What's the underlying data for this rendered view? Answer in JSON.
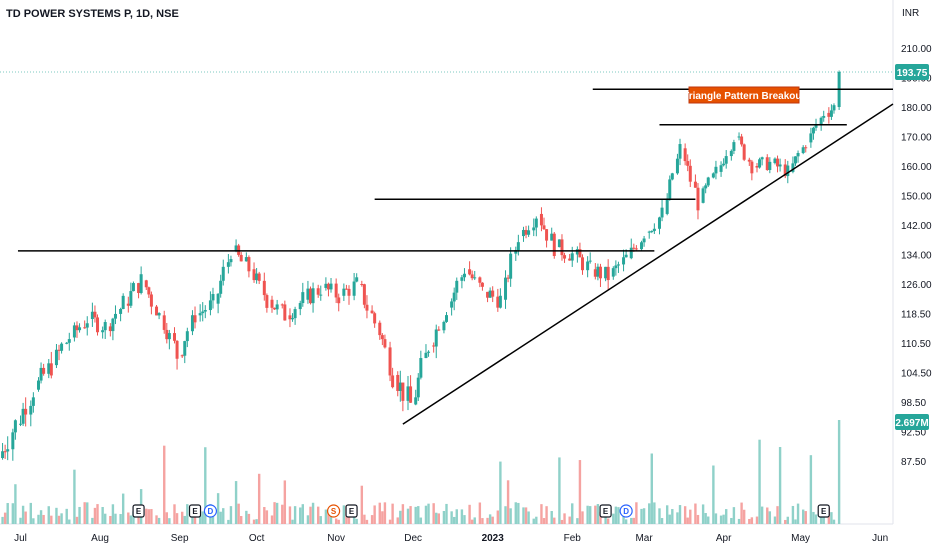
{
  "header": {
    "title": "TD POWER SYSTEMS P, 1D, NSE",
    "currency": "INR"
  },
  "colors": {
    "up": "#26a69a",
    "down": "#ef5350",
    "upVol": "#8fd1c9",
    "downVol": "#f5a3a1",
    "priceTag": "#26a69a",
    "volTag": "#26a69a",
    "annotation": "#e65100",
    "line": "#000000"
  },
  "chart_data": {
    "type": "candlestick",
    "title": "TD POWER SYSTEMS P, 1D, NSE",
    "y_axis": {
      "unit": "INR",
      "range": [
        84,
        218
      ],
      "ticks": [
        "210.00",
        "190.00",
        "180.00",
        "170.00",
        "160.00",
        "150.00",
        "142.00",
        "134.00",
        "126.00",
        "118.50",
        "110.50",
        "104.50",
        "98.50",
        "92.50",
        "87.50"
      ]
    },
    "x_axis": {
      "range": [
        "2022-06-23",
        "2023-06-06"
      ],
      "ticks": [
        {
          "label": "Jul",
          "date": "2022-07-01"
        },
        {
          "label": "Aug",
          "date": "2022-08-01"
        },
        {
          "label": "Sep",
          "date": "2022-09-01"
        },
        {
          "label": "Oct",
          "date": "2022-10-01"
        },
        {
          "label": "Nov",
          "date": "2022-11-01"
        },
        {
          "label": "Dec",
          "date": "2022-12-01"
        },
        {
          "label": "2023",
          "date": "2023-01-01"
        },
        {
          "label": "Feb",
          "date": "2023-02-01"
        },
        {
          "label": "Mar",
          "date": "2023-03-01"
        },
        {
          "label": "Apr",
          "date": "2023-04-01"
        },
        {
          "label": "May",
          "date": "2023-05-01"
        },
        {
          "label": "Jun",
          "date": "2023-06-01"
        }
      ]
    },
    "series_price": [
      [
        "2022-06-24",
        88,
        94
      ],
      [
        "2022-07-01",
        94,
        101
      ],
      [
        "2022-07-08",
        101,
        106
      ],
      [
        "2022-07-15",
        106,
        112
      ],
      [
        "2022-07-22",
        112,
        117
      ],
      [
        "2022-07-29",
        117,
        115
      ],
      [
        "2022-08-05",
        115,
        121
      ],
      [
        "2022-08-12",
        121,
        127
      ],
      [
        "2022-08-19",
        127,
        118
      ],
      [
        "2022-08-26",
        118,
        108
      ],
      [
        "2022-09-02",
        108,
        118
      ],
      [
        "2022-09-09",
        118,
        121
      ],
      [
        "2022-09-16",
        121,
        135
      ],
      [
        "2022-09-23",
        135,
        130
      ],
      [
        "2022-09-30",
        130,
        122
      ],
      [
        "2022-10-07",
        122,
        118
      ],
      [
        "2022-10-14",
        118,
        122
      ],
      [
        "2022-10-21",
        122,
        125
      ],
      [
        "2022-10-28",
        125,
        123
      ],
      [
        "2022-11-04",
        123,
        126
      ],
      [
        "2022-11-11",
        126,
        116
      ],
      [
        "2022-11-18",
        116,
        104
      ],
      [
        "2022-11-25",
        104,
        98
      ],
      [
        "2022-12-02",
        98,
        110
      ],
      [
        "2022-12-09",
        110,
        120
      ],
      [
        "2022-12-16",
        120,
        130
      ],
      [
        "2022-12-23",
        130,
        124
      ],
      [
        "2022-12-30",
        124,
        122
      ],
      [
        "2023-01-06",
        122,
        139
      ],
      [
        "2023-01-13",
        139,
        145
      ],
      [
        "2023-01-20",
        145,
        136
      ],
      [
        "2023-01-27",
        136,
        134
      ],
      [
        "2023-02-03",
        134,
        130
      ],
      [
        "2023-02-10",
        130,
        128
      ],
      [
        "2023-02-17",
        128,
        133
      ],
      [
        "2023-02-24",
        133,
        140
      ],
      [
        "2023-03-03",
        140,
        145
      ],
      [
        "2023-03-10",
        145,
        166
      ],
      [
        "2023-03-17",
        166,
        148
      ],
      [
        "2023-03-24",
        148,
        158
      ],
      [
        "2023-03-31",
        158,
        170
      ],
      [
        "2023-04-07",
        170,
        160
      ],
      [
        "2023-04-14",
        160,
        161
      ],
      [
        "2023-04-21",
        161,
        158
      ],
      [
        "2023-04-28",
        158,
        168
      ],
      [
        "2023-05-05",
        168,
        178
      ],
      [
        "2023-05-12",
        178,
        180
      ],
      [
        "2023-05-16",
        180,
        193.75
      ]
    ],
    "last_price": "193.75",
    "last_volume": "2.697M",
    "resistance_levels": [
      135,
      149,
      174,
      186
    ],
    "support_line": {
      "from": [
        "2022-11-27",
        94
      ],
      "to": [
        "2023-06-06",
        181
      ]
    },
    "annotation": "Triangle Pattern Breakout",
    "events": [
      {
        "label": "E",
        "date": "2022-08-16",
        "color": "#131722"
      },
      {
        "label": "E",
        "date": "2022-09-07",
        "color": "#131722"
      },
      {
        "label": "D",
        "date": "2022-09-13",
        "color": "#2962ff"
      },
      {
        "label": "S",
        "date": "2022-10-31",
        "color": "#e65100"
      },
      {
        "label": "E",
        "date": "2022-11-07",
        "color": "#131722"
      },
      {
        "label": "E",
        "date": "2023-02-14",
        "color": "#131722"
      },
      {
        "label": "D",
        "date": "2023-02-22",
        "color": "#2962ff"
      },
      {
        "label": "E",
        "date": "2023-05-10",
        "color": "#131722"
      }
    ],
    "grid": false,
    "legend": "none"
  }
}
